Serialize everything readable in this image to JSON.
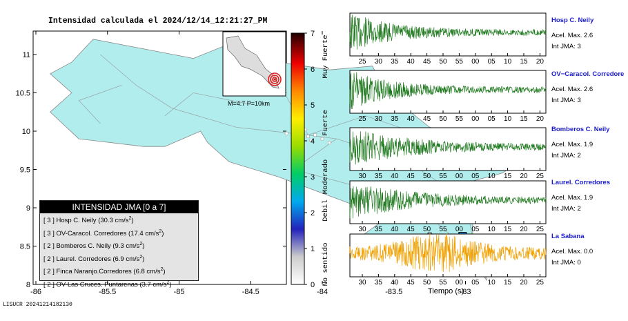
{
  "map": {
    "title": "Intensidad calculada el 2024/12/14_12:21:27_PM",
    "xticks": [
      "-86",
      "-85.5",
      "-85",
      "-84.5",
      "-84",
      "-83.5",
      "-83"
    ],
    "yticks": [
      "11",
      "10.5",
      "10",
      "9.5",
      "9",
      "8.5",
      "8"
    ],
    "inset_caption": "M=4.7 P=10km",
    "footer_id": "LISUCR 20241214182130",
    "water_color": "#ffffff",
    "land_color": "#b2eded",
    "station_color": "#2a8ee0"
  },
  "legend": {
    "header": "INTENSIDAD JMA [0 a 7]",
    "items": [
      {
        "level": "[ 3 ]",
        "name": "Hosp C. Neily",
        "acc": "(30.3 cm/s",
        "unit": "2",
        ")": ")"
      },
      {
        "level": "[ 3 ]",
        "name": "OV-Caracol. Corredores",
        "acc": "(17.4 cm/s",
        "unit": "2",
        ")": ")"
      },
      {
        "level": "[ 2 ]",
        "name": "Bomberos C. Neily",
        "acc": "(9.3 cm/s",
        "unit": "2",
        ")": ")"
      },
      {
        "level": "[ 2 ]",
        "name": "Laurel. Corredores",
        "acc": "(6.9 cm/s",
        "unit": "2",
        ")": ")"
      },
      {
        "level": "[ 2 ]",
        "name": "Finca Naranjo.Corredores",
        "acc": "(6.8 cm/s",
        "unit": "2",
        ")": ")"
      },
      {
        "level": "[ 2 ]",
        "name": "OV-Las Cruces. Puntarenas",
        "acc": "(3.7 cm/s",
        "unit": "2",
        ")": ")"
      }
    ]
  },
  "colorbar": {
    "ticks": [
      "7",
      "6",
      "5",
      "4",
      "3",
      "2",
      "1",
      "0"
    ],
    "labels": [
      "Muy Fuerte",
      "Fuerte",
      "Moderado",
      "Debil",
      "No sentido"
    ]
  },
  "chart_data": {
    "type": "line",
    "xlabel": "Tiempo (s)",
    "panels": [
      {
        "name": "Hosp C. Neily",
        "acel": "Acel. Max. 2.6",
        "int": "Int JMA: 3",
        "color": "#1f7a1f",
        "xticks": [
          "25",
          "30",
          "35",
          "40",
          "45",
          "50",
          "55",
          "00",
          "05",
          "10",
          "15",
          "20"
        ]
      },
      {
        "name": "OV−Caracol. Corredore",
        "acel": "Acel. Max. 2.6",
        "int": "Int JMA: 3",
        "color": "#1f7a1f",
        "xticks": [
          "25",
          "30",
          "35",
          "40",
          "45",
          "50",
          "55",
          "00",
          "05",
          "10",
          "15",
          "20"
        ]
      },
      {
        "name": "Bomberos C. Neily",
        "acel": "Acel. Max. 1.9",
        "int": "Int JMA: 2",
        "color": "#1f7a1f",
        "xticks": [
          "30",
          "35",
          "40",
          "45",
          "50",
          "55",
          "00",
          "05",
          "10",
          "15",
          "20",
          "25"
        ]
      },
      {
        "name": "Laurel. Corredores",
        "acel": "Acel. Max. 1.9",
        "int": "Int JMA: 2",
        "color": "#1f7a1f",
        "xticks": [
          "30",
          "35",
          "40",
          "45",
          "50",
          "55",
          "00",
          "05",
          "10",
          "15",
          "20",
          "25"
        ]
      },
      {
        "name": "La Sabana",
        "acel": "Acel. Max. 0.0",
        "int": "Int JMA: 0",
        "color": "#f0a000",
        "xticks": [
          "30",
          "35",
          "40",
          "45",
          "50",
          "55",
          "00",
          "05",
          "10",
          "15",
          "20",
          "25"
        ]
      }
    ]
  }
}
